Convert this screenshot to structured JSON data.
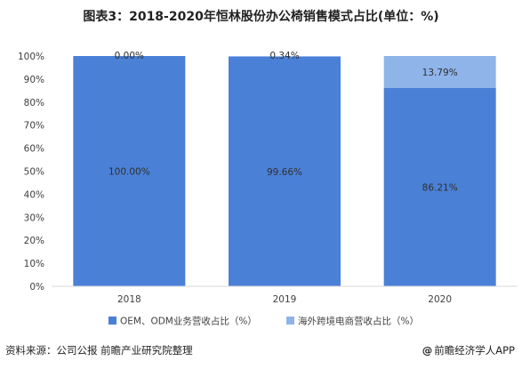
{
  "title": "图表3：2018-2020年恒林股份办公椅销售模式占比(单位：%)",
  "source": "资料来源：公司公报 前瞻产业研究院整理",
  "credit": "前瞻经济学人APP",
  "colors": {
    "oem": "#4a80d6",
    "overseas": "#8fb4ea",
    "axis": "#d9d9d9",
    "grid": "#ececec",
    "text": "#404040"
  },
  "chart_data": {
    "type": "bar",
    "stacked": true,
    "categories": [
      "2018",
      "2019",
      "2020"
    ],
    "series": [
      {
        "name": "OEM、ODM业务营收占比（%）",
        "values": [
          100.0,
          99.66,
          86.21
        ],
        "labels": [
          "100.00%",
          "99.66%",
          "86.21%"
        ]
      },
      {
        "name": "海外跨境电商营收占比（%）",
        "values": [
          0.0,
          0.34,
          13.79
        ],
        "labels": [
          "0.00%",
          "0.34%",
          "13.79%"
        ]
      }
    ],
    "ylim": [
      0,
      100
    ],
    "yticks": [
      "0%",
      "10%",
      "20%",
      "30%",
      "40%",
      "50%",
      "60%",
      "70%",
      "80%",
      "90%",
      "100%"
    ],
    "grid": false,
    "legend": "bottom"
  }
}
